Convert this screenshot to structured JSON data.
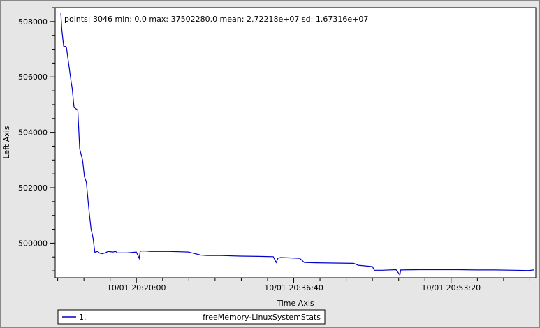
{
  "window_frame_color": "#c0c0c0",
  "series_color": "#0000cc",
  "chart_data": {
    "type": "line",
    "xlabel": "Time Axis",
    "ylabel": "Left Axis",
    "stats": "points: 3046 min: 0.0 max: 37502280.0 mean: 2.72218e+07 sd: 1.67316e+07",
    "y_ticks": [
      500000,
      502000,
      504000,
      506000,
      508000
    ],
    "y_tick_labels": [
      "500000",
      "502000",
      "504000",
      "506000",
      "508000"
    ],
    "ylim": [
      498750,
      508500
    ],
    "x_ticks": [
      "10/01 20:20:00",
      "10/01 20:36:40",
      "10/01 20:53:20"
    ],
    "x_tick_minutes": [
      20.0,
      36.667,
      53.333
    ],
    "xlim_minutes": [
      11.4,
      62.3
    ],
    "grid": false,
    "legend": {
      "position": "bottom-left",
      "index_label": "1.",
      "name": "freeMemory-LinuxSystemStats"
    },
    "series": [
      {
        "name": "freeMemory-LinuxSystemStats",
        "x_minutes": [
          12.0,
          12.1,
          12.3,
          12.5,
          12.6,
          13.1,
          13.2,
          13.4,
          13.8,
          14.0,
          14.3,
          14.5,
          14.7,
          15.0,
          15.2,
          15.4,
          15.6,
          15.9,
          16.1,
          16.4,
          16.7,
          17.0,
          17.5,
          17.8,
          18.0,
          19.0,
          20.0,
          20.3,
          20.4,
          20.8,
          21.5,
          22.5,
          23.5,
          24.5,
          25.5,
          26.8,
          27.5,
          29.0,
          31.0,
          33.0,
          34.5,
          34.8,
          35.0,
          35.3,
          36.0,
          37.3,
          37.8,
          39.0,
          41.0,
          43.0,
          43.5,
          45.0,
          45.2,
          46.0,
          47.5,
          47.9,
          48.0,
          50.0,
          52.0,
          54.0,
          56.0,
          58.0,
          60.0,
          61.5,
          62.1
        ],
        "values": [
          508300,
          507700,
          507100,
          507100,
          507050,
          505800,
          505600,
          504900,
          504800,
          503400,
          503000,
          502400,
          502200,
          501100,
          500500,
          500200,
          499670,
          499700,
          499640,
          499620,
          499650,
          499700,
          499680,
          499700,
          499650,
          499650,
          499680,
          499450,
          499710,
          499720,
          499700,
          499700,
          499700,
          499690,
          499680,
          499570,
          499550,
          499550,
          499530,
          499520,
          499510,
          499300,
          499460,
          499480,
          499470,
          499450,
          499300,
          499290,
          499280,
          499270,
          499200,
          499150,
          499020,
          499020,
          499040,
          498850,
          499030,
          499040,
          499040,
          499040,
          499030,
          499030,
          499020,
          499010,
          499030
        ]
      }
    ]
  }
}
